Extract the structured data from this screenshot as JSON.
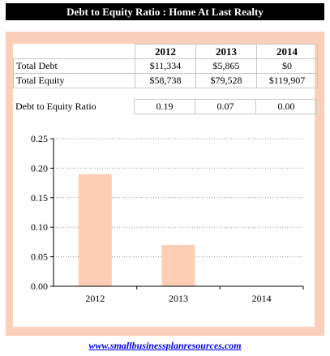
{
  "title": "Debt to Equity Ratio : Home At Last Realty",
  "table": {
    "years": [
      "2012",
      "2013",
      "2014"
    ],
    "rows": [
      {
        "label": "Total Debt",
        "values": [
          "$11,334",
          "$5,865",
          "$0"
        ]
      },
      {
        "label": "Total Equity",
        "values": [
          "$58,738",
          "$79,528",
          "$119,907"
        ]
      }
    ]
  },
  "ratio_row": {
    "label": "Debt to Equity Ratio",
    "values": [
      "0.19",
      "0.07",
      "0.00"
    ]
  },
  "colors": {
    "bar": "#ffcfb5",
    "panel": "#fbd0bb",
    "title_bg": "#000000"
  },
  "chart_data": {
    "type": "bar",
    "categories": [
      "2012",
      "2013",
      "2014"
    ],
    "values": [
      0.19,
      0.07,
      0.0
    ],
    "title": "",
    "xlabel": "",
    "ylabel": "",
    "ylim": [
      0,
      0.25
    ],
    "yticks": [
      "0.00",
      "0.05",
      "0.10",
      "0.15",
      "0.20",
      "0.25"
    ],
    "grid": true,
    "legend": "none"
  },
  "footer": {
    "link_text": "www.smallbusinessplanresources.com"
  }
}
